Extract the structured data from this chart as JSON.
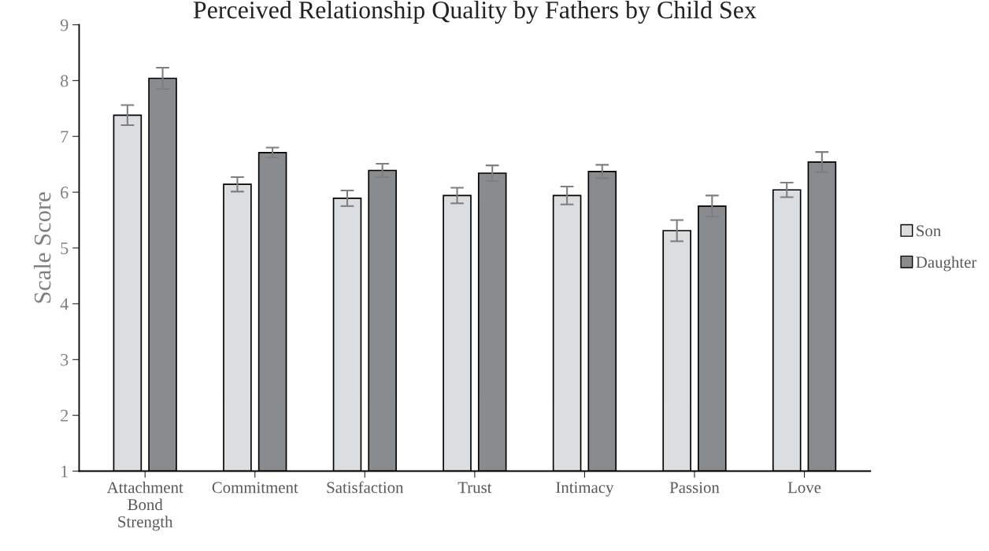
{
  "chart_data": {
    "type": "bar",
    "title": "Perceived Relationship Quality by Fathers by Child Sex",
    "ylabel": "Scale Score",
    "categories": [
      "Attachment\nBond\nStrength",
      "Commitment",
      "Satisfaction",
      "Trust",
      "Intimacy",
      "Passion",
      "Love"
    ],
    "series": [
      {
        "name": "Son",
        "color": "#dcdddf",
        "values": [
          7.38,
          6.14,
          5.89,
          5.94,
          5.94,
          5.31,
          6.04
        ],
        "errors": [
          0.18,
          0.13,
          0.14,
          0.14,
          0.16,
          0.19,
          0.13
        ]
      },
      {
        "name": "Daughter",
        "color": "#8a8b8f",
        "values": [
          8.04,
          6.71,
          6.39,
          6.34,
          6.37,
          5.75,
          6.54
        ],
        "errors": [
          0.19,
          0.09,
          0.12,
          0.14,
          0.12,
          0.19,
          0.18
        ]
      }
    ],
    "ylim": [
      1,
      9
    ],
    "yticks": [
      1,
      2,
      3,
      4,
      5,
      6,
      7,
      8,
      9
    ],
    "grid": false,
    "legend": "right"
  }
}
